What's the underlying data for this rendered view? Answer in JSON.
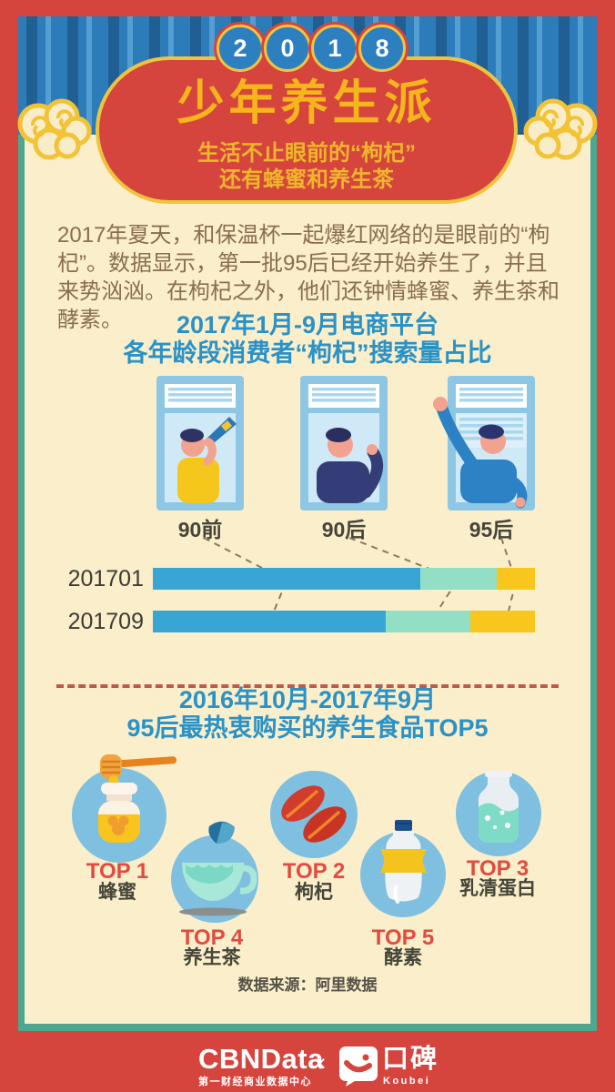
{
  "colors": {
    "background_red": "#d6453d",
    "panel_cream": "#faeecb",
    "panel_edge_teal": "#4ba88f",
    "curtain_blue": "#2d7cba",
    "badge_border_gold": "#eec43e",
    "title_yellow": "#f6b41d",
    "heading_blue": "#2a92c6",
    "body_brown": "#8a6e4d",
    "rank_red": "#e14b40",
    "icon_circle_blue": "#7fc0e0"
  },
  "header": {
    "year_digits": [
      "2",
      "0",
      "1",
      "8"
    ],
    "title": "少年养生派",
    "subtitle_line1": "生活不止眼前的“枸杞”",
    "subtitle_line2": "还有蜂蜜和养生茶"
  },
  "intro_text": "2017年夏天，和保温杯一起爆红网络的是眼前的“枸杞”。数据显示，第一批95后已经开始养生了，并且来势汹汹。在枸杞之外，他们还钟情蜂蜜、养生茶和酵素。",
  "section1": {
    "title_line1": "2017年1月-9月电商平台",
    "title_line2": "各年龄段消费者“枸杞”搜索量占比"
  },
  "chart_data": {
    "type": "bar",
    "orientation": "horizontal",
    "stacked": true,
    "unit": "percent share (estimated from bar lengths)",
    "title": "2017年1月-9月电商平台各年龄段消费者“枸杞”搜索量占比",
    "categories": [
      "201701",
      "201709"
    ],
    "series": [
      {
        "name": "90前",
        "color": "#38a5d4",
        "values": [
          70,
          61
        ]
      },
      {
        "name": "90后",
        "color": "#93dfc6",
        "values": [
          20,
          22
        ]
      },
      {
        "name": "95后",
        "color": "#f9c61d",
        "values": [
          10,
          17
        ]
      }
    ],
    "legend_position": "illustrated window figures above bars, linked by dashed lines",
    "grid": false
  },
  "section2": {
    "title_line1": "2016年10月-2017年9月",
    "title_line2": "95后最热衷购买的养生食品TOP5",
    "items": [
      {
        "rank": "TOP 1",
        "name": "蜂蜜",
        "icon": "honey-jar-icon"
      },
      {
        "rank": "TOP 2",
        "name": "枸杞",
        "icon": "goji-berries-icon"
      },
      {
        "rank": "TOP 3",
        "name": "乳清蛋白",
        "icon": "whey-protein-bottle-icon"
      },
      {
        "rank": "TOP 4",
        "name": "养生茶",
        "icon": "herbal-tea-cup-icon"
      },
      {
        "rank": "TOP 5",
        "name": "酵素",
        "icon": "enzyme-drink-bottle-icon"
      }
    ],
    "source": "数据来源：阿里数据"
  },
  "footer": {
    "cbndata_logo": "CBNData",
    "cbndata_subtitle": "第一财经商业数据中心",
    "separator": "×",
    "koubei_logo": "口碑",
    "koubei_subtitle": "Koubei"
  }
}
